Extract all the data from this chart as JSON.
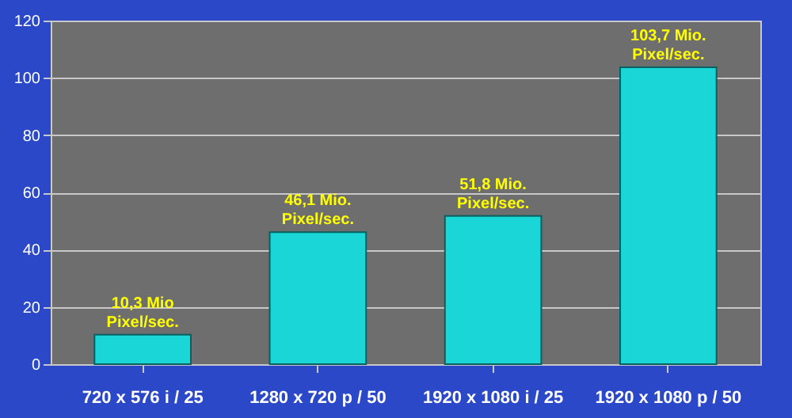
{
  "chart_data": {
    "type": "bar",
    "categories": [
      "720 x 576 i / 25",
      "1280 x 720 p / 50",
      "1920 x 1080 i / 25",
      "1920 x 1080 p / 50"
    ],
    "values": [
      10.3,
      46.1,
      51.8,
      103.7
    ],
    "value_labels": [
      "10,3 Mio\nPixel/sec.",
      "46,1 Mio.\nPixel/sec.",
      "51,8 Mio.\nPixel/sec.",
      "103,7 Mio.\nPixel/sec."
    ],
    "color": "#1ad6d6",
    "ylim": [
      0,
      120
    ],
    "yticks": [
      0,
      20,
      40,
      60,
      80,
      100,
      120
    ],
    "grid": "y"
  }
}
